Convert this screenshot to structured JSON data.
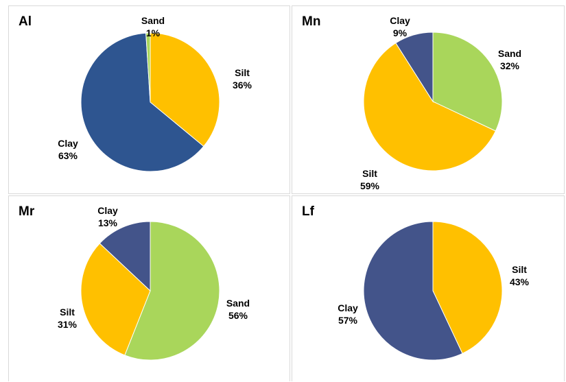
{
  "colors": {
    "Sand": "#a9d65b",
    "Silt": "#ffc000",
    "Clay": "#2e5590",
    "Clay_alt": "#43548a"
  },
  "chart_data": [
    {
      "type": "pie",
      "title": "Al",
      "slices": [
        {
          "label": "Silt",
          "value": 36,
          "text": "36%",
          "color": "#ffc000"
        },
        {
          "label": "Clay",
          "value": 63,
          "text": "63%",
          "color": "#2e5590"
        },
        {
          "label": "Sand",
          "value": 1,
          "text": "1%",
          "color": "#a9d65b"
        }
      ]
    },
    {
      "type": "pie",
      "title": "Mn",
      "slices": [
        {
          "label": "Sand",
          "value": 32,
          "text": "32%",
          "color": "#a9d65b"
        },
        {
          "label": "Silt",
          "value": 59,
          "text": "59%",
          "color": "#ffc000"
        },
        {
          "label": "Clay",
          "value": 9,
          "text": "9%",
          "color": "#43548a"
        }
      ]
    },
    {
      "type": "pie",
      "title": "Mr",
      "slices": [
        {
          "label": "Sand",
          "value": 56,
          "text": "56%",
          "color": "#a9d65b"
        },
        {
          "label": "Silt",
          "value": 31,
          "text": "31%",
          "color": "#ffc000"
        },
        {
          "label": "Clay",
          "value": 13,
          "text": "13%",
          "color": "#43548a"
        }
      ]
    },
    {
      "type": "pie",
      "title": "Lf",
      "slices": [
        {
          "label": "Silt",
          "value": 43,
          "text": "43%",
          "color": "#ffc000"
        },
        {
          "label": "Clay",
          "value": 57,
          "text": "57%",
          "color": "#43548a"
        }
      ]
    }
  ]
}
